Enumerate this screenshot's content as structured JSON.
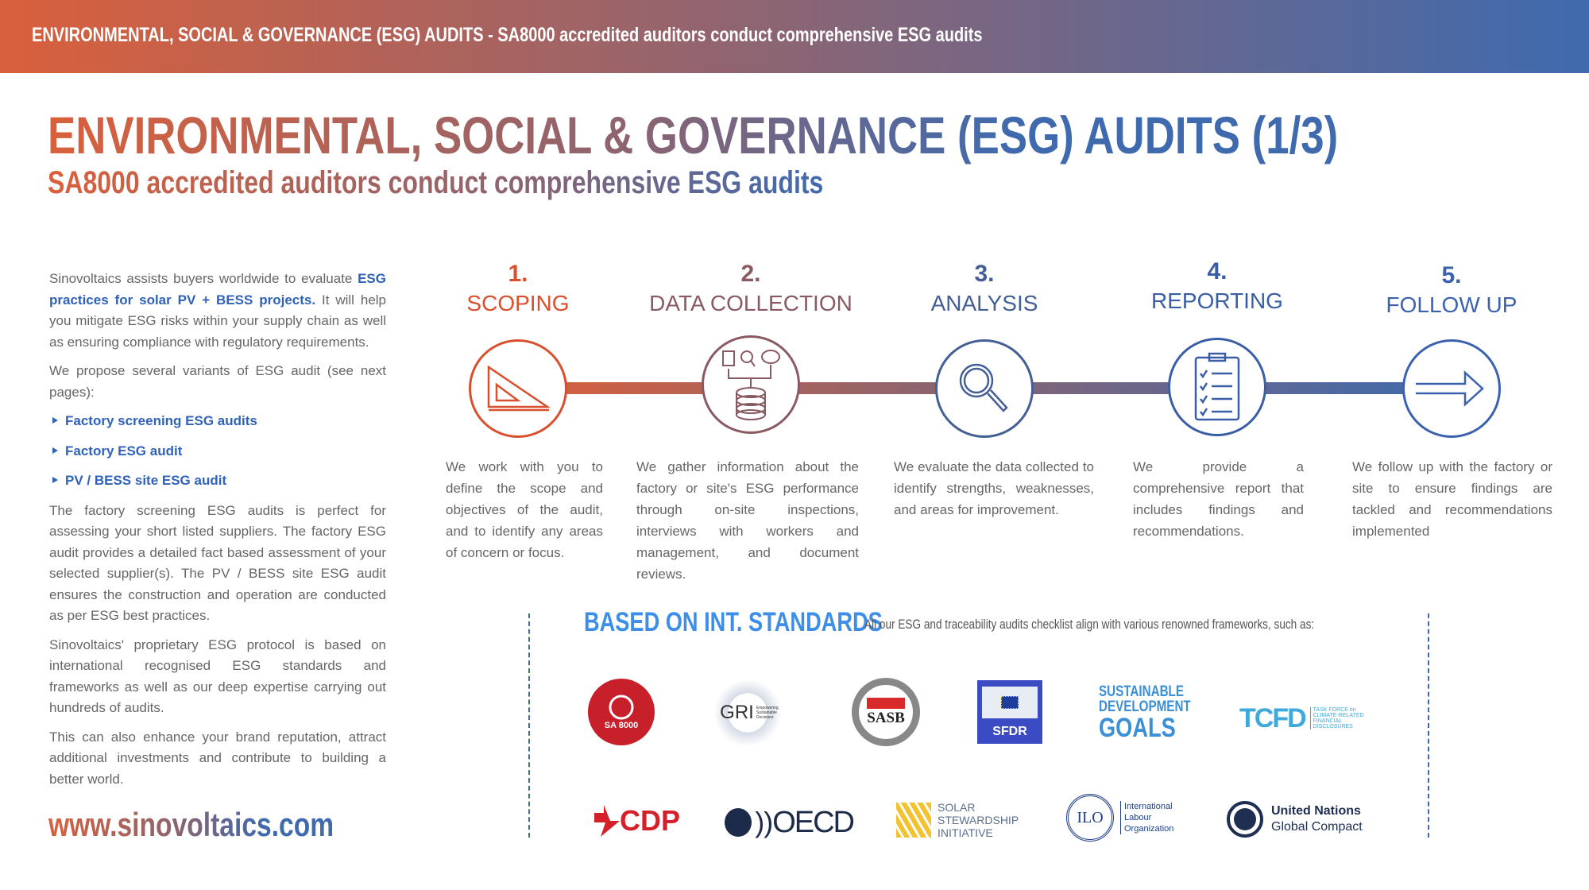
{
  "header": {
    "banner": "ENVIRONMENTAL, SOCIAL & GOVERNANCE (ESG) AUDITS - SA8000 accredited auditors conduct comprehensive ESG audits"
  },
  "title": "ENVIRONMENTAL, SOCIAL & GOVERNANCE (ESG) AUDITS (1/3)",
  "subtitle": "SA8000 accredited auditors conduct comprehensive ESG audits",
  "intro": {
    "p1_a": "Sinovoltaics assists buyers worldwide to evaluate ",
    "p1_b": "ESG practices for solar PV + BESS projects.",
    "p1_c": " It will help you mitigate ESG risks within your supply chain as well as  ensuring compliance  with regulatory requirements.",
    "p2": "We propose several variants of ESG audit (see next pages):",
    "variants": [
      "Factory screening ESG audits",
      "Factory ESG audit",
      "PV / BESS site ESG audit"
    ],
    "p3": "The factory screening ESG audits is perfect for assessing your short listed suppliers. The factory ESG audit provides a detailed fact based assessment of your selected supplier(s). The PV / BESS site ESG audit ensures the construction and operation are conducted as per ESG best practices.",
    "p4": "Sinovoltaics' proprietary ESG protocol is based on international recognised ESG standards and frameworks as well as our deep expertise carrying out hundreds of audits.",
    "p5": "This can also enhance your brand reputation, attract additional investments and contribute to building a better world."
  },
  "steps": [
    {
      "num": "1.",
      "label": "SCOPING",
      "icon": "set-square-icon",
      "color": "#d9502f",
      "desc": "We work with you to define the scope and objectives of the audit, and to identify any areas of concern or focus."
    },
    {
      "num": "2.",
      "label": "DATA COLLECTION",
      "icon": "database-icon",
      "color": "#8a5a62",
      "desc": "We gather information about the factory or site's ESG performance through on-site inspections, interviews with workers and management, and document reviews."
    },
    {
      "num": "3.",
      "label": "ANALYSIS",
      "icon": "magnifier-icon",
      "color": "#445f96",
      "desc": "We evaluate the data collected to identify strengths, weaknesses, and areas for improvement."
    },
    {
      "num": "4.",
      "label": "REPORTING",
      "icon": "clipboard-icon",
      "color": "#3a5ea6",
      "desc": "We provide a comprehensive report that includes findings and recommendations."
    },
    {
      "num": "5.",
      "label": "FOLLOW UP",
      "icon": "arrow-right-icon",
      "color": "#3a62ae",
      "desc": "We follow up with the factory or site to ensure findings are tackled and recommendations implemented"
    }
  ],
  "standards": {
    "title": "BASED ON INT. STANDARDS",
    "text": "All our ESG and traceability audits  checklist align with various renowned frameworks, such as:",
    "logos": {
      "sa8000": "SA 8000",
      "gri": "GRI",
      "gri_sub": "Empowering Sustainable Decisions",
      "sasb": "SASB",
      "sfdr": "SFDR",
      "sdg1": "SUSTAINABLE",
      "sdg2": "DEVELOPMENT",
      "sdg3": "GOALS",
      "tcfd": "TCFD",
      "tcfd_sub": "TASK FORCE on CLIMATE-RELATED FINANCIAL DISCLOSURES",
      "cdp": "CDP",
      "oecd": "OECD",
      "ssi": "SOLAR STEWARDSHIP INITIATIVE",
      "ilo": "ILO",
      "ilo_sub": "International Labour Organization",
      "ungc1": "United Nations",
      "ungc2": "Global Compact"
    }
  },
  "website": "www.sinovoltaics.com",
  "colors": {
    "orange": "#d9603c",
    "blue": "#3f6aae",
    "accent": "#3d8ee8"
  }
}
